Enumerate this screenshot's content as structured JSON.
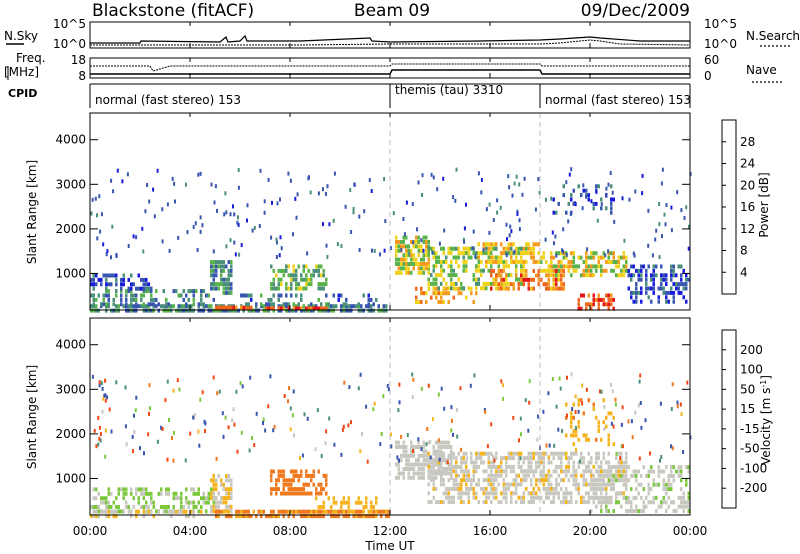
{
  "header": {
    "title": "Blackstone (fitACF)",
    "beam": "Beam 09",
    "date": "09/Dec/2009"
  },
  "top_panels": {
    "nsky_label": "N.Sky",
    "nsearch_label": "N.Search",
    "noise_ticks": [
      "10^5",
      "10^0"
    ],
    "freq_label_1": "Freq.",
    "freq_label_2": "[MHz]",
    "freq_ticks": [
      "18",
      "8"
    ],
    "nave_label": "Nave",
    "nave_ticks": [
      "60",
      "0"
    ],
    "cpid_label": "CPID",
    "cpid_segments": [
      {
        "label": "normal (fast stereo) 153",
        "start_hour": 0
      },
      {
        "label": "themis (tau) 3310",
        "start_hour": 12
      },
      {
        "label": "normal (fast stereo) 153",
        "start_hour": 18
      }
    ]
  },
  "axes": {
    "x_ticks": [
      "00:00",
      "04:00",
      "08:00",
      "12:00",
      "16:00",
      "20:00",
      "00:00"
    ],
    "xlabel": "Time UT",
    "y_ticks": [
      "1000",
      "2000",
      "3000",
      "4000"
    ],
    "ylabel": "Slant Range [km]"
  },
  "colorbars": {
    "power": {
      "label": "Power [dB]",
      "ticks": [
        "4",
        "8",
        "12",
        "16",
        "20",
        "24",
        "28"
      ],
      "colors": [
        "#1a1adc",
        "#3855b0",
        "#4a8f7a",
        "#5ab34a",
        "#f0d21a",
        "#f59a1e",
        "#f0641e",
        "#e61414"
      ]
    },
    "velocity": {
      "label": "Velocity [m s",
      "label_sup": "-1",
      "label_end": "]",
      "ticks": [
        "200",
        "100",
        "50",
        "15",
        "-15",
        "-50",
        "-100",
        "-200"
      ],
      "colors": [
        "#1a1adc",
        "#3855b0",
        "#4a8f7a",
        "#7cc83c",
        "#c8c8c0",
        "#f5b41e",
        "#f0781e",
        "#f04614",
        "#e60a0a"
      ]
    }
  },
  "chart_data": [
    {
      "type": "heatmap",
      "title": "Power",
      "xlabel": "Time UT",
      "ylabel": "Slant Range [km]",
      "xlim_hours": [
        0,
        24
      ],
      "ylim_km": [
        180,
        4600
      ],
      "colorbar_label": "Power [dB]",
      "color_range_db": [
        0,
        30
      ],
      "regions": [
        {
          "t0": 0.0,
          "t1": 11.9,
          "r0": 190,
          "r1": 310,
          "db": 10,
          "density": 0.75
        },
        {
          "t0": 0.0,
          "t1": 5.0,
          "r0": 300,
          "r1": 650,
          "db": 9,
          "density": 0.45
        },
        {
          "t0": 0.0,
          "t1": 2.5,
          "r0": 650,
          "r1": 1000,
          "db": 6,
          "density": 0.4
        },
        {
          "t0": 4.8,
          "t1": 5.7,
          "r0": 550,
          "r1": 1300,
          "db": 10,
          "density": 0.75
        },
        {
          "t0": 5.0,
          "t1": 6.5,
          "r0": 190,
          "r1": 280,
          "db": 26,
          "density": 0.9
        },
        {
          "t0": 7.0,
          "t1": 9.5,
          "r0": 190,
          "r1": 260,
          "db": 27,
          "density": 0.8
        },
        {
          "t0": 7.2,
          "t1": 9.5,
          "r0": 650,
          "r1": 1200,
          "db": 13,
          "density": 0.55
        },
        {
          "t0": 6.0,
          "t1": 11.5,
          "r0": 300,
          "r1": 550,
          "db": 8,
          "density": 0.35
        },
        {
          "t0": 12.2,
          "t1": 13.6,
          "r0": 1000,
          "r1": 1850,
          "db": 17,
          "density": 0.75
        },
        {
          "t0": 13.0,
          "t1": 15.5,
          "r0": 350,
          "r1": 700,
          "db": 22,
          "density": 0.5
        },
        {
          "t0": 13.5,
          "t1": 17.5,
          "r0": 700,
          "r1": 1600,
          "db": 15,
          "density": 0.5
        },
        {
          "t0": 15.5,
          "t1": 18.0,
          "r0": 1300,
          "r1": 1700,
          "db": 19,
          "density": 0.6
        },
        {
          "t0": 16.0,
          "t1": 19.0,
          "r0": 700,
          "r1": 1100,
          "db": 24,
          "density": 0.55
        },
        {
          "t0": 18.0,
          "t1": 21.5,
          "r0": 1000,
          "r1": 1500,
          "db": 18,
          "density": 0.55
        },
        {
          "t0": 19.5,
          "t1": 21.0,
          "r0": 250,
          "r1": 550,
          "db": 27,
          "density": 0.6
        },
        {
          "t0": 21.5,
          "t1": 24.0,
          "r0": 400,
          "r1": 1200,
          "db": 5,
          "density": 0.5
        },
        {
          "t0": 18.5,
          "t1": 21.0,
          "r0": 2400,
          "r1": 3000,
          "db": 5,
          "density": 0.18
        }
      ]
    },
    {
      "type": "heatmap",
      "title": "Velocity",
      "xlabel": "Time UT",
      "ylabel": "Slant Range [km]",
      "xlim_hours": [
        0,
        24
      ],
      "ylim_km": [
        180,
        4600
      ],
      "colorbar_label": "Velocity [m s-1]",
      "color_range_ms": [
        -250,
        250
      ],
      "regions": [
        {
          "t0": 0.0,
          "t1": 5.0,
          "r0": 300,
          "r1": 800,
          "vel": 20,
          "density": 0.5
        },
        {
          "t0": 0.0,
          "t1": 4.5,
          "r0": 190,
          "r1": 300,
          "vel": -10,
          "density": 0.5
        },
        {
          "t0": 4.8,
          "t1": 5.7,
          "r0": 300,
          "r1": 1100,
          "vel": -10,
          "density": 0.7
        },
        {
          "t0": 5.0,
          "t1": 12.0,
          "r0": 190,
          "r1": 300,
          "vel": -60,
          "density": 0.7
        },
        {
          "t0": 7.2,
          "t1": 9.5,
          "r0": 650,
          "r1": 1200,
          "vel": -80,
          "density": 0.6
        },
        {
          "t0": 9.0,
          "t1": 11.5,
          "r0": 300,
          "r1": 600,
          "vel": -30,
          "density": 0.4
        },
        {
          "t0": 12.2,
          "t1": 14.5,
          "r0": 1000,
          "r1": 1850,
          "vel": 0,
          "density": 0.65
        },
        {
          "t0": 13.5,
          "t1": 21.5,
          "r0": 500,
          "r1": 1600,
          "vel": -5,
          "density": 0.6
        },
        {
          "t0": 20.0,
          "t1": 24.0,
          "r0": 300,
          "r1": 1300,
          "vel": 5,
          "density": 0.45
        },
        {
          "t0": 19.0,
          "t1": 21.0,
          "r0": 1800,
          "r1": 2800,
          "vel": -40,
          "density": 0.2
        }
      ]
    }
  ]
}
